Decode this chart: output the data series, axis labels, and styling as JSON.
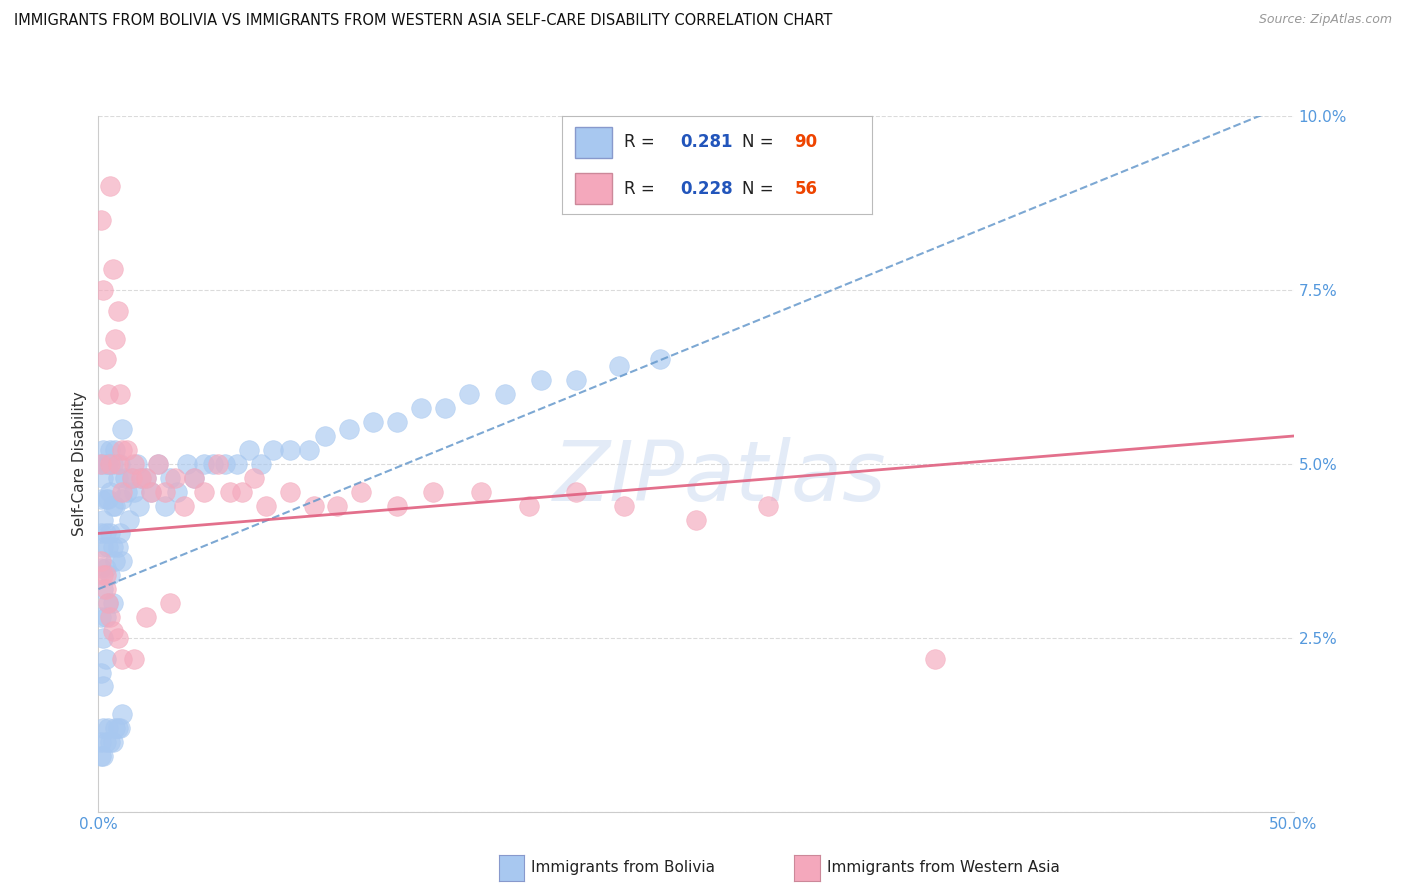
{
  "title": "IMMIGRANTS FROM BOLIVIA VS IMMIGRANTS FROM WESTERN ASIA SELF-CARE DISABILITY CORRELATION CHART",
  "source": "Source: ZipAtlas.com",
  "ylabel": "Self-Care Disability",
  "xlim": [
    0.0,
    0.5
  ],
  "ylim": [
    0.0,
    0.1
  ],
  "bolivia_R": 0.281,
  "bolivia_N": 90,
  "western_asia_R": 0.228,
  "western_asia_N": 56,
  "bolivia_color": "#a8c8f0",
  "western_asia_color": "#f4a8bc",
  "bolivia_line_color": "#6699cc",
  "western_asia_line_color": "#e06080",
  "bolivia_trend_slope": 0.14,
  "bolivia_trend_intercept": 0.032,
  "western_asia_trend_slope": 0.028,
  "western_asia_trend_intercept": 0.04,
  "watermark_text": "ZIPatlas",
  "background_color": "#ffffff",
  "grid_color": "#cccccc",
  "legend_R_color": "#2255bb",
  "legend_N_color": "#ee4400",
  "bolivia_x": [
    0.001,
    0.001,
    0.001,
    0.001,
    0.001,
    0.001,
    0.002,
    0.002,
    0.002,
    0.002,
    0.002,
    0.002,
    0.002,
    0.003,
    0.003,
    0.003,
    0.003,
    0.003,
    0.003,
    0.004,
    0.004,
    0.004,
    0.004,
    0.005,
    0.005,
    0.005,
    0.005,
    0.006,
    0.006,
    0.006,
    0.006,
    0.007,
    0.007,
    0.007,
    0.008,
    0.008,
    0.009,
    0.009,
    0.01,
    0.01,
    0.01,
    0.011,
    0.012,
    0.013,
    0.014,
    0.015,
    0.016,
    0.017,
    0.018,
    0.02,
    0.022,
    0.025,
    0.028,
    0.03,
    0.033,
    0.037,
    0.04,
    0.044,
    0.048,
    0.053,
    0.058,
    0.063,
    0.068,
    0.073,
    0.08,
    0.088,
    0.095,
    0.105,
    0.115,
    0.125,
    0.135,
    0.145,
    0.155,
    0.17,
    0.185,
    0.2,
    0.218,
    0.235,
    0.001,
    0.001,
    0.002,
    0.002,
    0.003,
    0.004,
    0.005,
    0.006,
    0.007,
    0.008,
    0.009,
    0.01
  ],
  "bolivia_y": [
    0.05,
    0.045,
    0.04,
    0.035,
    0.028,
    0.02,
    0.052,
    0.048,
    0.042,
    0.038,
    0.032,
    0.025,
    0.018,
    0.05,
    0.045,
    0.04,
    0.035,
    0.028,
    0.022,
    0.05,
    0.045,
    0.038,
    0.03,
    0.052,
    0.046,
    0.04,
    0.034,
    0.05,
    0.044,
    0.038,
    0.03,
    0.052,
    0.044,
    0.036,
    0.048,
    0.038,
    0.05,
    0.04,
    0.055,
    0.045,
    0.036,
    0.048,
    0.046,
    0.042,
    0.048,
    0.046,
    0.05,
    0.044,
    0.048,
    0.048,
    0.046,
    0.05,
    0.044,
    0.048,
    0.046,
    0.05,
    0.048,
    0.05,
    0.05,
    0.05,
    0.05,
    0.052,
    0.05,
    0.052,
    0.052,
    0.052,
    0.054,
    0.055,
    0.056,
    0.056,
    0.058,
    0.058,
    0.06,
    0.06,
    0.062,
    0.062,
    0.064,
    0.065,
    0.01,
    0.008,
    0.012,
    0.008,
    0.01,
    0.012,
    0.01,
    0.01,
    0.012,
    0.012,
    0.012,
    0.014
  ],
  "western_asia_x": [
    0.001,
    0.001,
    0.002,
    0.003,
    0.004,
    0.005,
    0.005,
    0.006,
    0.007,
    0.008,
    0.008,
    0.009,
    0.01,
    0.01,
    0.012,
    0.014,
    0.015,
    0.018,
    0.02,
    0.022,
    0.025,
    0.028,
    0.032,
    0.036,
    0.04,
    0.044,
    0.05,
    0.055,
    0.06,
    0.065,
    0.07,
    0.08,
    0.09,
    0.1,
    0.11,
    0.125,
    0.14,
    0.16,
    0.18,
    0.2,
    0.22,
    0.25,
    0.28,
    0.001,
    0.002,
    0.003,
    0.003,
    0.004,
    0.005,
    0.006,
    0.008,
    0.01,
    0.015,
    0.02,
    0.03,
    0.35
  ],
  "western_asia_y": [
    0.085,
    0.05,
    0.075,
    0.065,
    0.06,
    0.09,
    0.05,
    0.078,
    0.068,
    0.072,
    0.05,
    0.06,
    0.052,
    0.046,
    0.052,
    0.048,
    0.05,
    0.048,
    0.048,
    0.046,
    0.05,
    0.046,
    0.048,
    0.044,
    0.048,
    0.046,
    0.05,
    0.046,
    0.046,
    0.048,
    0.044,
    0.046,
    0.044,
    0.044,
    0.046,
    0.044,
    0.046,
    0.046,
    0.044,
    0.046,
    0.044,
    0.042,
    0.044,
    0.036,
    0.034,
    0.034,
    0.032,
    0.03,
    0.028,
    0.026,
    0.025,
    0.022,
    0.022,
    0.028,
    0.03,
    0.022
  ]
}
